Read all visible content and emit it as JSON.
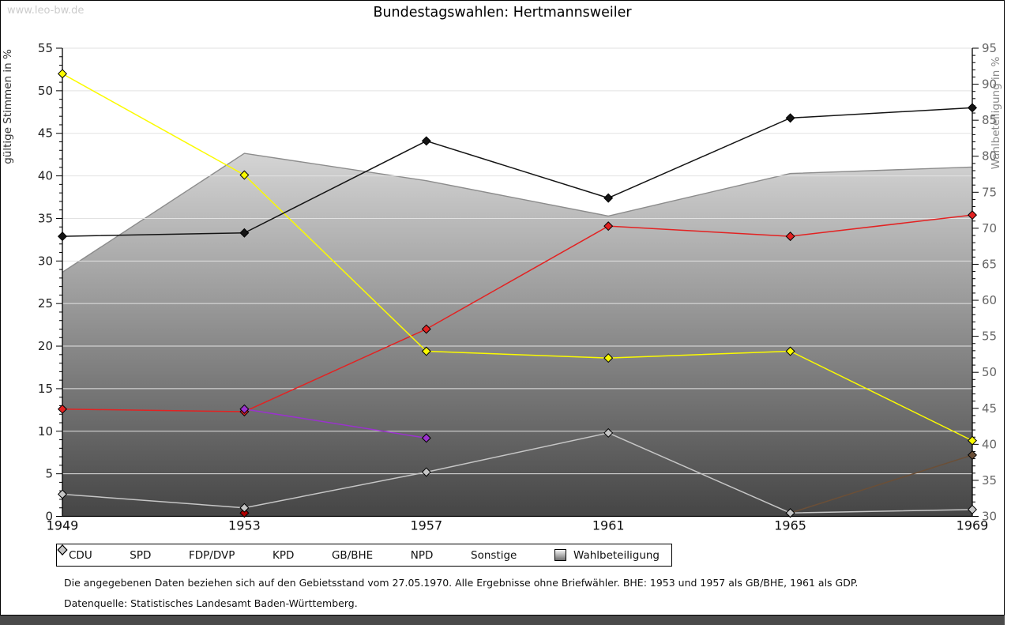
{
  "watermark": "www.leo-bw.de",
  "title": "Bundestagswahlen: Hertmannsweiler",
  "footnotes": {
    "line1": "Die angegebenen Daten beziehen sich auf den Gebietsstand vom 27.05.1970. Alle Ergebnisse ohne Briefwähler. BHE: 1953 und 1957 als GB/BHE, 1961 als GDP.",
    "line2": "Datenquelle: Statistisches Landesamt Baden-Württemberg."
  },
  "chart_data": {
    "type": "line",
    "title": "Bundestagswahlen: Hertmannsweiler",
    "categories": [
      "1949",
      "1953",
      "1957",
      "1961",
      "1965",
      "1969"
    ],
    "left_axis": {
      "label": "gültige Stimmen in %",
      "min": 0,
      "max": 55,
      "major_step": 5,
      "minor_step": 1
    },
    "right_axis": {
      "label": "Wahlbeteiligung in %",
      "min": 30,
      "max": 95,
      "major_step": 5,
      "minor_step": 1
    },
    "grid": true,
    "legend_position": "bottom",
    "area_gradient": [
      "#fefefe",
      "#454545"
    ],
    "series": [
      {
        "name": "CDU",
        "axis": "left",
        "marker": "diamond",
        "color": "#141414",
        "values": [
          32.9,
          33.3,
          44.1,
          37.4,
          46.8,
          48.0
        ]
      },
      {
        "name": "SPD",
        "axis": "left",
        "marker": "diamond",
        "color": "#e32222",
        "values": [
          12.6,
          12.3,
          22.0,
          34.1,
          32.9,
          35.4
        ]
      },
      {
        "name": "FDP/DVP",
        "axis": "left",
        "marker": "diamond",
        "color": "#fbfb00",
        "values": [
          52.0,
          40.1,
          19.4,
          18.6,
          19.4,
          8.9
        ]
      },
      {
        "name": "KPD",
        "axis": "left",
        "marker": "diamond",
        "color": "#b00000",
        "values": [
          null,
          0.4,
          null,
          null,
          null,
          null
        ]
      },
      {
        "name": "GB/BHE",
        "axis": "left",
        "marker": "diamond",
        "color": "#9a32cd",
        "values": [
          null,
          12.6,
          9.2,
          null,
          null,
          null
        ]
      },
      {
        "name": "NPD",
        "axis": "left",
        "marker": "diamond",
        "color": "#6b4f37",
        "values": [
          null,
          null,
          null,
          null,
          0.4,
          7.2
        ]
      },
      {
        "name": "Sonstige",
        "axis": "left",
        "marker": "diamond",
        "color": "#c6c6c6",
        "values": [
          2.6,
          1.0,
          5.2,
          9.8,
          0.4,
          0.8
        ]
      },
      {
        "name": "Wahlbeteiligung",
        "axis": "right",
        "type": "area",
        "color": "#8c8c8c",
        "values": [
          63.9,
          80.4,
          76.6,
          71.7,
          77.6,
          78.5
        ]
      }
    ],
    "draw_order": [
      "KPD",
      "NPD",
      "SPD",
      "GB/BHE",
      "FDP/DVP",
      "Sonstige",
      "CDU"
    ]
  }
}
